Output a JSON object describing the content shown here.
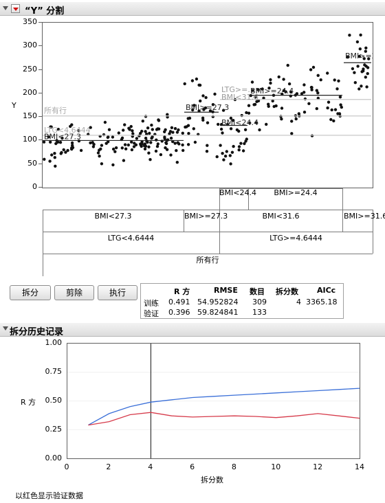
{
  "header": {
    "title": "“Y” 分割"
  },
  "scatter": {
    "y_label": "Y",
    "y_ticks": [
      "350",
      "300",
      "250",
      "200",
      "150",
      "100",
      "50",
      "0"
    ],
    "overlay_labels": [
      "BMI>=2…",
      "LTG>=…",
      "BMI>=24.4",
      "BMI<31.6",
      "BMI>=27.3",
      "BMI<24.4",
      "所有行",
      "LTG<4.6444",
      "BMI<27.3"
    ]
  },
  "tree": {
    "level1": "所有行",
    "level2": [
      "LTG<4.6444",
      "LTG>=4.6444"
    ],
    "level3": [
      "BMI<27.3",
      "BMI>=27.3",
      "BMI<31.6",
      "BMI>=31.6"
    ],
    "level4": [
      "BMI<24.4",
      "BMI>=24.4"
    ]
  },
  "buttons": {
    "split": "拆分",
    "prune": "剪除",
    "go": "执行"
  },
  "stats": {
    "headers": [
      "R 方",
      "RMSE",
      "数目",
      "拆分数",
      "AICc"
    ],
    "rows": [
      {
        "label": "训练",
        "rsq": "0.491",
        "rmse": "54.952824",
        "n": "309",
        "splits": "4",
        "aicc": "3365.18"
      },
      {
        "label": "验证",
        "rsq": "0.396",
        "rmse": "59.824841",
        "n": "133",
        "splits": "",
        "aicc": ""
      }
    ]
  },
  "history": {
    "title": "拆分历史记录",
    "ylabel": "R 方",
    "xlabel": "拆分数",
    "note": "以红色显示验证数据",
    "y_ticks": [
      "1.00",
      "0.75",
      "0.50",
      "0.25",
      "0.00"
    ],
    "x_ticks": [
      "0",
      "2",
      "4",
      "6",
      "8",
      "10",
      "12",
      "14"
    ]
  },
  "chart_data": {
    "type": "line",
    "title": "拆分历史记录",
    "xlabel": "拆分数",
    "ylabel": "R 方",
    "xlim": [
      0,
      14
    ],
    "ylim": [
      0,
      1
    ],
    "x": [
      1,
      2,
      3,
      4,
      5,
      6,
      7,
      8,
      9,
      10,
      11,
      12,
      13,
      14
    ],
    "series": [
      {
        "color": "#3a6fd8",
        "values": [
          0.29,
          0.39,
          0.45,
          0.49,
          0.51,
          0.53,
          0.54,
          0.55,
          0.56,
          0.57,
          0.58,
          0.59,
          0.6,
          0.61
        ]
      },
      {
        "color": "#d63a4a",
        "values": [
          0.29,
          0.32,
          0.38,
          0.4,
          0.37,
          0.36,
          0.365,
          0.37,
          0.365,
          0.355,
          0.37,
          0.39,
          0.37,
          0.35
        ]
      }
    ],
    "marker_x": 4
  },
  "colors": {
    "train": "#3a6fd8",
    "validation": "#d63a4a"
  }
}
